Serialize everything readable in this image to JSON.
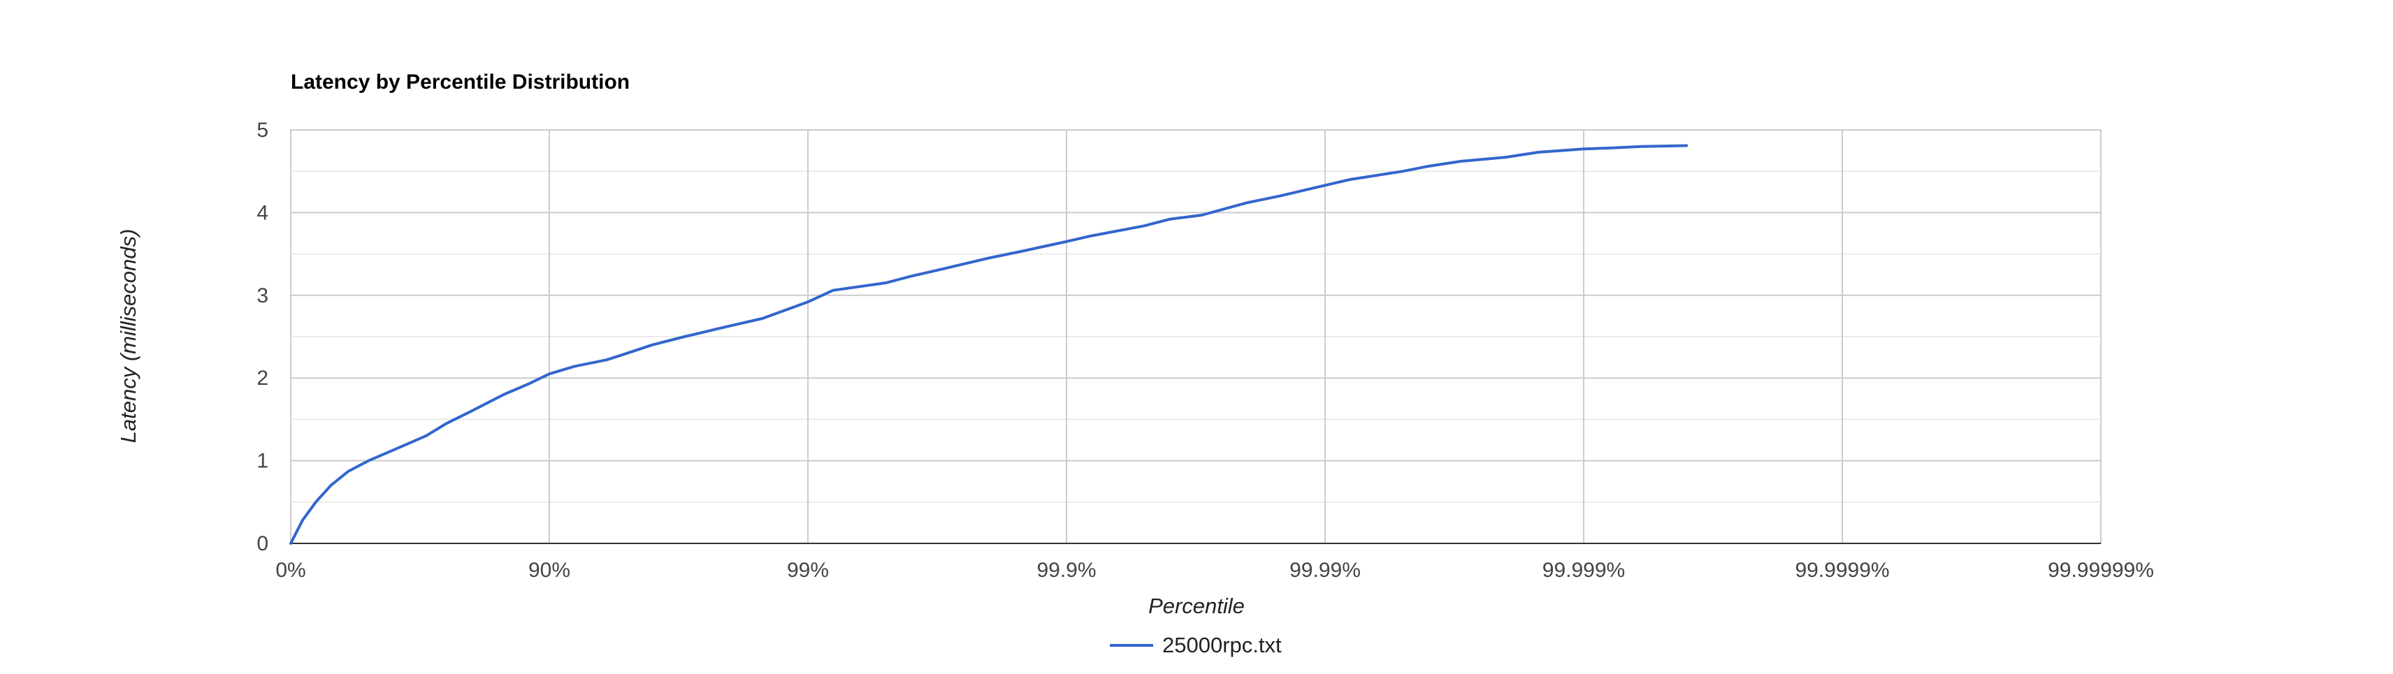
{
  "chart_data": {
    "type": "line",
    "title": "Latency by Percentile Distribution",
    "xlabel": "Percentile",
    "ylabel": "Latency (milliseconds)",
    "x_scale": "log-inverse-percentile",
    "x_ticks": [
      "0%",
      "90%",
      "99%",
      "99.9%",
      "99.99%",
      "99.999%",
      "99.9999%",
      "99.99999%"
    ],
    "y_ticks": [
      "0",
      "1",
      "2",
      "3",
      "4",
      "5"
    ],
    "ylim": [
      0,
      5
    ],
    "grid": true,
    "legend": {
      "position": "bottom",
      "entries": [
        "25000rpc.txt"
      ]
    },
    "series": [
      {
        "name": "25000rpc.txt",
        "color": "#3366cc",
        "x": [
          0,
          10,
          20,
          30,
          40,
          50,
          60,
          70,
          75,
          80,
          85,
          88,
          90,
          92,
          94,
          95,
          96,
          97,
          98,
          98.5,
          99,
          99.2,
          99.5,
          99.6,
          99.7,
          99.8,
          99.85,
          99.9,
          99.92,
          99.95,
          99.96,
          99.97,
          99.98,
          99.985,
          99.99,
          99.992,
          99.995,
          99.996,
          99.997,
          99.998,
          99.9985,
          99.999,
          99.9992,
          99.9994,
          99.9996
        ],
        "y": [
          0,
          0.28,
          0.5,
          0.7,
          0.87,
          1.0,
          1.13,
          1.3,
          1.45,
          1.6,
          1.8,
          1.93,
          2.05,
          2.14,
          2.22,
          2.3,
          2.4,
          2.5,
          2.63,
          2.72,
          2.92,
          3.06,
          3.15,
          3.23,
          3.32,
          3.45,
          3.53,
          3.65,
          3.72,
          3.84,
          3.92,
          3.97,
          4.12,
          4.2,
          4.33,
          4.4,
          4.5,
          4.56,
          4.62,
          4.67,
          4.73,
          4.77,
          4.78,
          4.8,
          4.81
        ]
      }
    ]
  }
}
